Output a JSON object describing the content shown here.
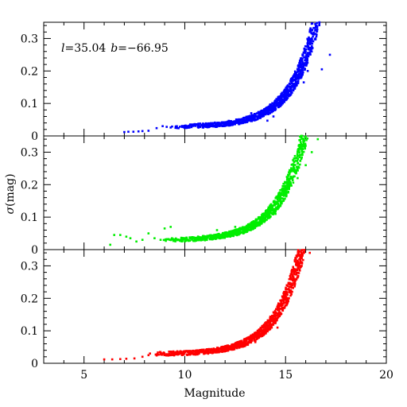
{
  "chart_data": {
    "type": "scatter",
    "annotation": {
      "l_var": "l",
      "l_value": "=35.04",
      "b_var": "b",
      "b_value": "=−66.95"
    },
    "xlabel": "Magnitude",
    "ylabel_sym": "σ",
    "ylabel_rest": "(mag)",
    "xlim": [
      3,
      20
    ],
    "ylim": [
      0,
      0.35
    ],
    "x_major_ticks": [
      5,
      10,
      15,
      20
    ],
    "y_major_ticks": [
      0,
      0.1,
      0.2,
      0.3
    ],
    "y_tick_labels": [
      "0",
      "0.1",
      "0.2",
      "0.3"
    ],
    "grid": false,
    "legend": "none",
    "series": [
      {
        "color": "#0000ff",
        "model": {
          "a": 0.028,
          "c": 8.6e-06,
          "k": 0.78,
          "xmin": 7.0,
          "xmax": 17.0
        },
        "sparse_points": [
          {
            "x": 7.0,
            "y": 0.012
          },
          {
            "x": 7.2,
            "y": 0.013
          },
          {
            "x": 7.45,
            "y": 0.013
          },
          {
            "x": 7.7,
            "y": 0.014
          },
          {
            "x": 7.9,
            "y": 0.015
          },
          {
            "x": 8.2,
            "y": 0.016
          },
          {
            "x": 8.6,
            "y": 0.024
          },
          {
            "x": 8.9,
            "y": 0.03
          },
          {
            "x": 9.1,
            "y": 0.028
          },
          {
            "x": 9.3,
            "y": 0.026
          }
        ],
        "outliers": [
          {
            "x": 13.3,
            "y": 0.07
          },
          {
            "x": 13.6,
            "y": 0.058
          },
          {
            "x": 14.1,
            "y": 0.047
          },
          {
            "x": 14.4,
            "y": 0.06
          },
          {
            "x": 15.5,
            "y": 0.19
          },
          {
            "x": 15.7,
            "y": 0.18
          },
          {
            "x": 15.9,
            "y": 0.165
          },
          {
            "x": 16.1,
            "y": 0.2
          },
          {
            "x": 17.2,
            "y": 0.25
          },
          {
            "x": 16.8,
            "y": 0.205
          }
        ]
      },
      {
        "color": "#00ee00",
        "model": {
          "a": 0.028,
          "c": 1.75e-05,
          "k": 0.76,
          "xmin": 6.3,
          "xmax": 16.6
        },
        "sparse_points": [
          {
            "x": 6.3,
            "y": 0.015
          },
          {
            "x": 6.5,
            "y": 0.045
          },
          {
            "x": 6.8,
            "y": 0.045
          },
          {
            "x": 7.1,
            "y": 0.04
          },
          {
            "x": 7.3,
            "y": 0.035
          },
          {
            "x": 7.6,
            "y": 0.025
          },
          {
            "x": 7.9,
            "y": 0.03
          },
          {
            "x": 8.2,
            "y": 0.05
          },
          {
            "x": 8.5,
            "y": 0.035
          },
          {
            "x": 8.8,
            "y": 0.03
          }
        ],
        "outliers": [
          {
            "x": 9.0,
            "y": 0.065
          },
          {
            "x": 9.3,
            "y": 0.07
          },
          {
            "x": 11.6,
            "y": 0.06
          },
          {
            "x": 12.5,
            "y": 0.07
          },
          {
            "x": 13.2,
            "y": 0.06
          },
          {
            "x": 14.5,
            "y": 0.11
          },
          {
            "x": 15.2,
            "y": 0.2
          },
          {
            "x": 15.6,
            "y": 0.22
          },
          {
            "x": 16.0,
            "y": 0.26
          },
          {
            "x": 16.3,
            "y": 0.3
          },
          {
            "x": 16.6,
            "y": 0.34
          }
        ]
      },
      {
        "color": "#ff0000",
        "model": {
          "a": 0.028,
          "c": 1.5e-05,
          "k": 0.78,
          "xmin": 6.0,
          "xmax": 16.1
        },
        "sparse_points": [
          {
            "x": 6.0,
            "y": 0.012
          },
          {
            "x": 6.4,
            "y": 0.012
          },
          {
            "x": 6.8,
            "y": 0.013
          },
          {
            "x": 7.1,
            "y": 0.014
          },
          {
            "x": 7.5,
            "y": 0.015
          },
          {
            "x": 7.9,
            "y": 0.02
          },
          {
            "x": 8.2,
            "y": 0.025
          }
        ],
        "outliers": [
          {
            "x": 13.0,
            "y": 0.075
          },
          {
            "x": 13.5,
            "y": 0.065
          },
          {
            "x": 14.0,
            "y": 0.1
          },
          {
            "x": 14.6,
            "y": 0.11
          },
          {
            "x": 15.0,
            "y": 0.2
          },
          {
            "x": 15.3,
            "y": 0.24
          },
          {
            "x": 15.8,
            "y": 0.3
          },
          {
            "x": 16.2,
            "y": 0.34
          }
        ]
      }
    ]
  }
}
